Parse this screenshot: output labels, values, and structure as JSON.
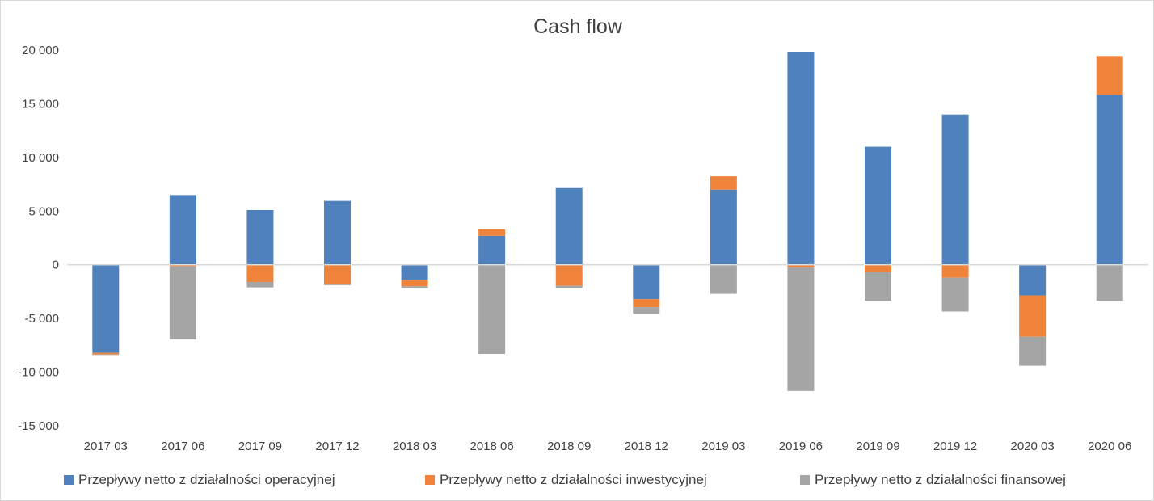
{
  "chart_data": {
    "type": "bar",
    "stacked": true,
    "title": "Cash flow",
    "xlabel": "",
    "ylabel": "",
    "ylim": [
      -15000,
      20000
    ],
    "yticks": [
      20000,
      15000,
      10000,
      5000,
      0,
      -5000,
      -10000,
      -15000
    ],
    "ytick_labels": [
      "20 000",
      "15 000",
      "10 000",
      "5 000",
      "0",
      "-5 000",
      "-10 000",
      "-15 000"
    ],
    "grid": false,
    "legend_position": "bottom",
    "categories": [
      "2017 03",
      "2017 06",
      "2017 09",
      "2017 12",
      "2018 03",
      "2018 06",
      "2018 09",
      "2018 12",
      "2019 03",
      "2019 06",
      "2019 09",
      "2019 12",
      "2020 03",
      "2020 06"
    ],
    "series": [
      {
        "name": "Przepływy netto z działalności operacyjnej",
        "color": "#4f81bd",
        "values": [
          -8200,
          6500,
          5100,
          5950,
          -1400,
          2700,
          7150,
          -3200,
          7000,
          19850,
          11000,
          14000,
          -2850,
          15850
        ]
      },
      {
        "name": "Przepływy netto z działalności inwestycyjnej",
        "color": "#f0833a",
        "values": [
          -150,
          -150,
          -1600,
          -1850,
          -600,
          600,
          -1950,
          -750,
          1250,
          -250,
          -700,
          -1200,
          -3850,
          3600
        ]
      },
      {
        "name": "Przepływy netto z działalności finansowej",
        "color": "#a5a5a5",
        "values": [
          -50,
          -6800,
          -500,
          -50,
          -200,
          -8300,
          -200,
          -600,
          -2700,
          -11500,
          -2650,
          -3150,
          -2700,
          -3350
        ]
      }
    ]
  }
}
